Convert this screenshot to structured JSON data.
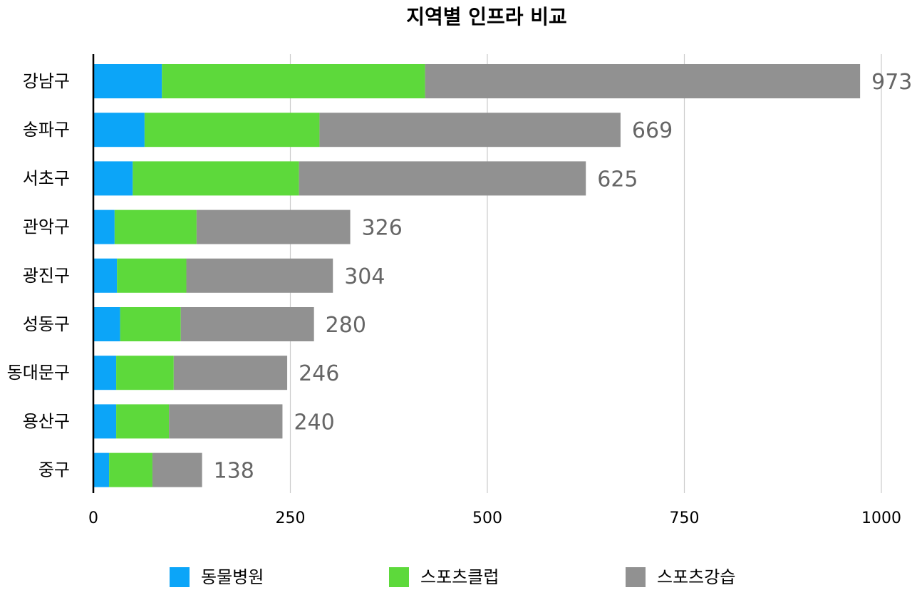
{
  "chart_data": {
    "type": "bar",
    "orientation": "horizontal",
    "stacked": true,
    "title": "지역별 인프라 비교",
    "xlabel": "",
    "ylabel": "",
    "xlim": [
      0,
      1000
    ],
    "xticks": [
      0,
      250,
      500,
      750,
      1000
    ],
    "xtick_labels": [
      "0",
      "250",
      "500",
      "750",
      "1000"
    ],
    "grid": "vertical",
    "legend_position": "bottom",
    "categories": [
      "강남구",
      "송파구",
      "서초구",
      "관악구",
      "광진구",
      "성동구",
      "동대문구",
      "용산구",
      "중구"
    ],
    "series": [
      {
        "name": "동물병원",
        "color": "#0CA5F8",
        "values": [
          87,
          65,
          50,
          27,
          30,
          34,
          29,
          29,
          20
        ]
      },
      {
        "name": "스포츠클럽",
        "color": "#5DD93B",
        "values": [
          334,
          222,
          211,
          104,
          88,
          77,
          73,
          67,
          55
        ]
      },
      {
        "name": "스포츠강습",
        "color": "#919191",
        "values": [
          552,
          382,
          364,
          195,
          186,
          169,
          144,
          144,
          63
        ]
      }
    ],
    "totals": [
      973,
      669,
      625,
      326,
      304,
      280,
      246,
      240,
      138
    ],
    "total_labels": [
      "973",
      "669",
      "625",
      "326",
      "304",
      "280",
      "246",
      "240",
      "138"
    ]
  }
}
